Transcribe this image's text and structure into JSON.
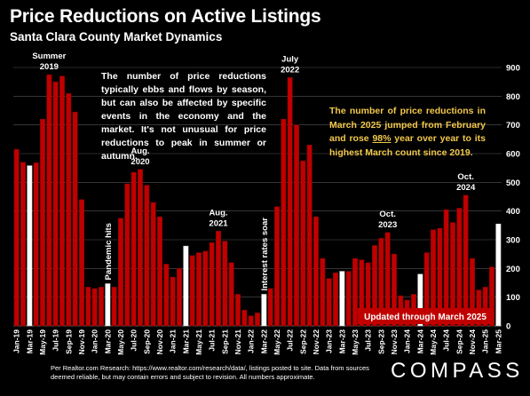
{
  "header": {
    "title": "Price Reductions on Active Listings",
    "subtitle": "Santa Clara County Market Dynamics"
  },
  "notes": {
    "seasonal": "The number of price reductions typically ebbs and flows by season, but can also be affected by specific events in the economy and the market. It's not unusual for price reductions to peak in summer or autumn.",
    "march_pre": "The number of price reductions in March 2025 jumped from February and rose ",
    "march_pct": "98%",
    "march_post": " year over year to its highest March count since 2019."
  },
  "footer": {
    "source": "Per Realtor.com Research:  https://www.realtor.com/research/data/, listings posted to site. Data from sources deemed reliable, but may contain errors and subject to revision. All numbers approximate.",
    "logo": "COMPASS"
  },
  "colors": {
    "bar": "#c00000",
    "march_bar": "#ffffff",
    "badge": "#c00000",
    "note_highlight": "#f2c84b",
    "grid": "#555555"
  },
  "chart_data": {
    "type": "bar",
    "x": [
      "Jan-19",
      "Feb-19",
      "Mar-19",
      "Apr-19",
      "May-19",
      "Jun-19",
      "Jul-19",
      "Aug-19",
      "Sep-19",
      "Oct-19",
      "Nov-19",
      "Dec-19",
      "Jan-20",
      "Feb-20",
      "Mar-20",
      "Apr-20",
      "May-20",
      "Jun-20",
      "Jul-20",
      "Aug-20",
      "Sep-20",
      "Oct-20",
      "Nov-20",
      "Dec-20",
      "Jan-21",
      "Feb-21",
      "Mar-21",
      "Apr-21",
      "May-21",
      "Jun-21",
      "Jul-21",
      "Aug-21",
      "Sep-21",
      "Oct-21",
      "Nov-21",
      "Dec-21",
      "Jan-22",
      "Feb-22",
      "Mar-22",
      "Apr-22",
      "May-22",
      "Jun-22",
      "Jul-22",
      "Aug-22",
      "Sep-22",
      "Oct-22",
      "Nov-22",
      "Dec-22",
      "Jan-23",
      "Feb-23",
      "Mar-23",
      "Apr-23",
      "May-23",
      "Jun-23",
      "Jul-23",
      "Aug-23",
      "Sep-23",
      "Oct-23",
      "Nov-23",
      "Dec-23",
      "Jan-24",
      "Feb-24",
      "Mar-24",
      "Apr-24",
      "May-24",
      "Jun-24",
      "Jul-24",
      "Aug-24",
      "Sep-24",
      "Oct-24",
      "Nov-24",
      "Dec-24",
      "Jan-25",
      "Feb-25",
      "Mar-25"
    ],
    "values": [
      615,
      570,
      558,
      568,
      720,
      875,
      850,
      870,
      810,
      745,
      440,
      135,
      130,
      135,
      147,
      135,
      375,
      495,
      535,
      545,
      490,
      430,
      380,
      215,
      170,
      200,
      278,
      245,
      255,
      260,
      290,
      330,
      295,
      220,
      110,
      55,
      35,
      45,
      110,
      130,
      415,
      720,
      865,
      700,
      575,
      630,
      380,
      235,
      165,
      185,
      190,
      190,
      235,
      230,
      220,
      280,
      305,
      325,
      250,
      105,
      90,
      110,
      180,
      255,
      335,
      340,
      405,
      360,
      410,
      455,
      235,
      125,
      135,
      205,
      355
    ],
    "highlight": [
      "Mar-19",
      "Mar-20",
      "Mar-21",
      "Mar-22",
      "Mar-23",
      "Mar-24",
      "Mar-25"
    ],
    "x_tick_labels": [
      "Jan-19",
      "Mar-19",
      "May-19",
      "Jul-19",
      "Sep-19",
      "Nov-19",
      "Jan-20",
      "Mar-20",
      "May-20",
      "Jul-20",
      "Sep-20",
      "Nov-20",
      "Jan-21",
      "Mar-21",
      "May-21",
      "Jul-21",
      "Sep-21",
      "Nov-21",
      "Jan-22",
      "Mar-22",
      "May-22",
      "Jul-22",
      "Sep-22",
      "Nov-22",
      "Jan-23",
      "Mar-23",
      "May-23",
      "Jul-23",
      "Sep-23",
      "Nov-23",
      "Jan-24",
      "Mar-24",
      "May-24",
      "Jul-24",
      "Sep-24",
      "Nov-24",
      "Jan-25",
      "Mar-25"
    ],
    "ylim": [
      0,
      900
    ],
    "y_ticks": [
      0,
      100,
      200,
      300,
      400,
      500,
      600,
      700,
      800,
      900
    ],
    "y_axis_side": "right",
    "grid": true,
    "annotations": [
      {
        "at": "Jun-19",
        "lines": [
          "Summer",
          "2019"
        ],
        "style": "above"
      },
      {
        "at": "Aug-20",
        "lines": [
          "Aug.",
          "2020"
        ],
        "style": "above"
      },
      {
        "at": "Aug-21",
        "lines": [
          "Aug.",
          "2021"
        ],
        "style": "above"
      },
      {
        "at": "Jul-22",
        "lines": [
          "July",
          "2022"
        ],
        "style": "above"
      },
      {
        "at": "Oct-23",
        "lines": [
          "Oct.",
          "2023"
        ],
        "style": "above"
      },
      {
        "at": "Oct-24",
        "lines": [
          "Oct.",
          "2024"
        ],
        "style": "above"
      },
      {
        "at": "Mar-20",
        "lines": [
          "Pandemic hits"
        ],
        "style": "vertical"
      },
      {
        "at": "Mar-22",
        "lines": [
          "Interest rates soar"
        ],
        "style": "vertical"
      }
    ],
    "badge": "Updated through March 2025"
  }
}
